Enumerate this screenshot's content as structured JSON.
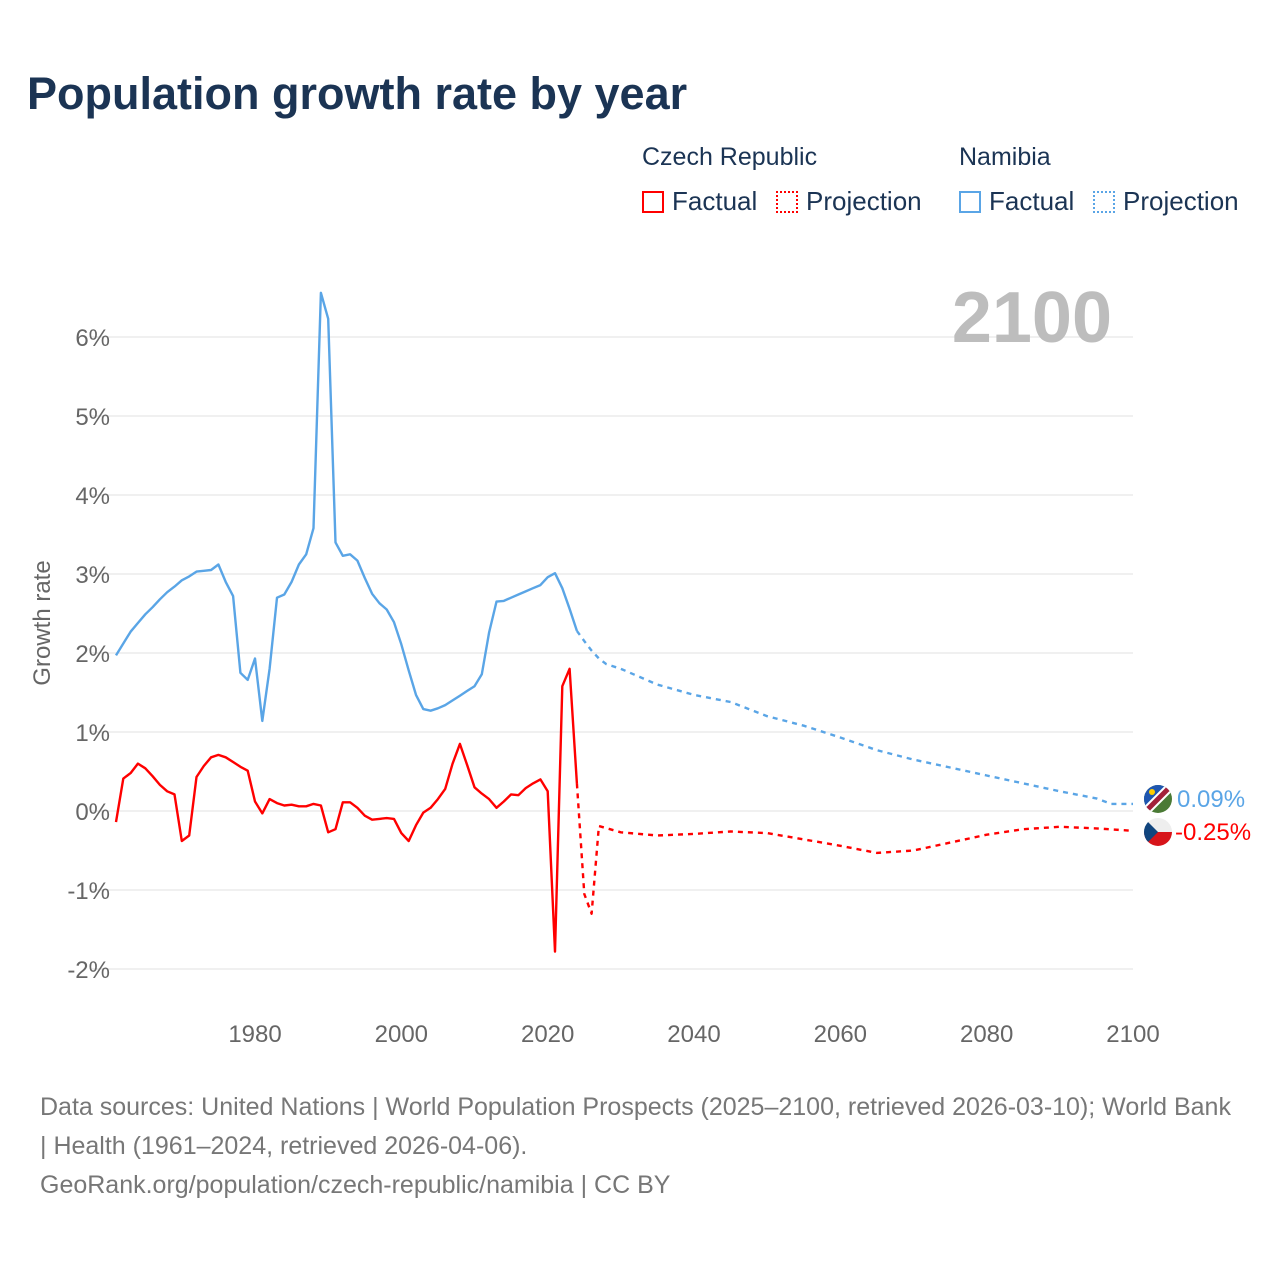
{
  "title": "Population growth rate by year",
  "legend": {
    "groups": [
      {
        "name": "Czech Republic",
        "factual": "Factual",
        "projection": "Projection",
        "color": "#ff0000"
      },
      {
        "name": "Namibia",
        "factual": "Factual",
        "projection": "Projection",
        "color": "#5aa5e6"
      }
    ]
  },
  "year_label": "2100",
  "end_labels": {
    "namibia": "0.09%",
    "czech": "-0.25%"
  },
  "footer": {
    "sources": "Data sources: United Nations | World Population Prospects (2025–2100, retrieved 2026-03-10); World Bank | Health (1961–2024, retrieved 2026-04-06).",
    "link": "GeoRank.org/population/czech-republic/namibia | CC BY"
  },
  "chart_data": {
    "type": "line",
    "title": "Population growth rate by year",
    "xlabel": "",
    "ylabel": "Growth rate",
    "xlim": [
      1961,
      2100
    ],
    "ylim": [
      -2.5,
      6.5
    ],
    "x_ticks": [
      1980,
      2000,
      2020,
      2040,
      2060,
      2080,
      2100
    ],
    "y_ticks": [
      -2,
      -1,
      0,
      1,
      2,
      3,
      4,
      5,
      6
    ],
    "y_tick_labels": [
      "-2%",
      "-1%",
      "0%",
      "1%",
      "2%",
      "3%",
      "4%",
      "5%",
      "6%"
    ],
    "x_tick_labels": [
      "1980",
      "2000",
      "2020",
      "2040",
      "2060",
      "2080",
      "2100"
    ],
    "grid": true,
    "legend_position": "top-right",
    "series": [
      {
        "name": "Namibia Factual",
        "color": "#5aa5e6",
        "dashed": false,
        "x_start": 1961,
        "values": [
          1.97,
          2.12,
          2.27,
          2.38,
          2.49,
          2.58,
          2.68,
          2.77,
          2.84,
          2.92,
          2.97,
          3.03,
          3.04,
          3.05,
          3.12,
          2.9,
          2.72,
          1.75,
          1.66,
          1.93,
          1.14,
          1.8,
          2.7,
          2.74,
          2.9,
          3.12,
          3.25,
          3.58,
          6.56,
          6.23,
          3.4,
          3.23,
          3.25,
          3.17,
          2.95,
          2.75,
          2.63,
          2.55,
          2.39,
          2.11,
          1.78,
          1.47,
          1.29,
          1.27,
          1.3,
          1.34,
          1.4,
          1.46,
          1.52,
          1.58,
          1.73,
          2.26,
          2.65,
          2.66,
          2.7,
          2.74,
          2.78,
          2.82,
          2.86,
          2.96,
          3.01,
          2.82,
          2.56,
          2.28
        ]
      },
      {
        "name": "Namibia Projection",
        "color": "#5aa5e6",
        "dashed": true,
        "x": [
          2024,
          2025,
          2026,
          2027,
          2028,
          2030,
          2035,
          2040,
          2045,
          2050,
          2055,
          2060,
          2065,
          2070,
          2075,
          2080,
          2085,
          2090,
          2095,
          2097,
          2100
        ],
        "values": [
          2.28,
          2.15,
          2.03,
          1.93,
          1.86,
          1.8,
          1.6,
          1.47,
          1.38,
          1.2,
          1.08,
          0.93,
          0.77,
          0.65,
          0.55,
          0.45,
          0.35,
          0.25,
          0.16,
          0.09,
          0.09
        ]
      },
      {
        "name": "Czech Republic Factual",
        "color": "#ff0000",
        "dashed": false,
        "x_start": 1961,
        "values": [
          -0.14,
          0.41,
          0.48,
          0.6,
          0.54,
          0.44,
          0.33,
          0.25,
          0.21,
          -0.38,
          -0.31,
          0.43,
          0.57,
          0.68,
          0.71,
          0.68,
          0.62,
          0.56,
          0.51,
          0.12,
          -0.03,
          0.15,
          0.1,
          0.07,
          0.08,
          0.06,
          0.06,
          0.09,
          0.07,
          -0.27,
          -0.23,
          0.11,
          0.11,
          0.04,
          -0.06,
          -0.11,
          -0.1,
          -0.09,
          -0.1,
          -0.28,
          -0.38,
          -0.18,
          -0.02,
          0.04,
          0.15,
          0.28,
          0.6,
          0.85,
          0.58,
          0.3,
          0.22,
          0.15,
          0.04,
          0.12,
          0.21,
          0.2,
          0.29,
          0.35,
          0.4,
          0.25,
          -1.78,
          1.58,
          1.8,
          0.35
        ]
      },
      {
        "name": "Czech Republic Projection",
        "color": "#ff0000",
        "dashed": true,
        "x": [
          2024,
          2025,
          2026,
          2027,
          2030,
          2035,
          2040,
          2045,
          2050,
          2055,
          2060,
          2065,
          2070,
          2075,
          2080,
          2085,
          2090,
          2095,
          2100
        ],
        "values": [
          0.35,
          -1.05,
          -1.3,
          -0.19,
          -0.27,
          -0.31,
          -0.29,
          -0.26,
          -0.28,
          -0.36,
          -0.44,
          -0.53,
          -0.5,
          -0.4,
          -0.3,
          -0.23,
          -0.2,
          -0.22,
          -0.25
        ]
      }
    ]
  }
}
